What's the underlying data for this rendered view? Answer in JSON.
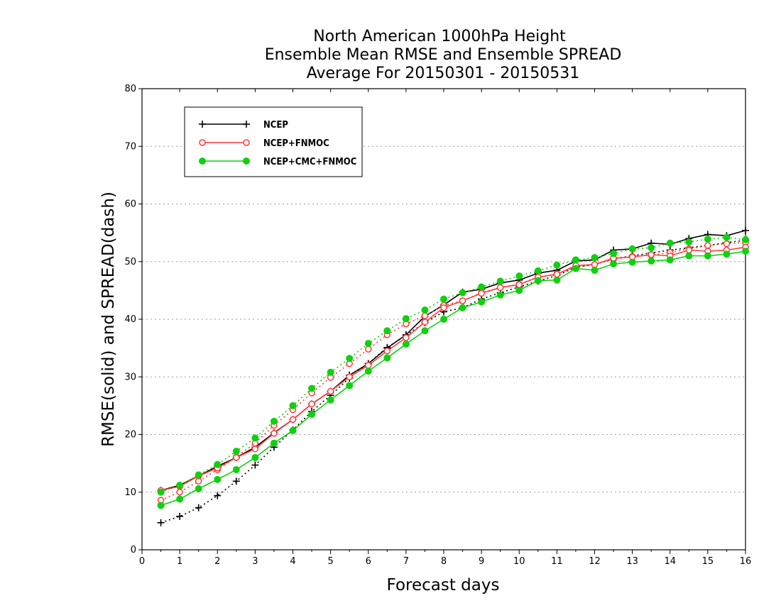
{
  "chart_data": {
    "type": "line",
    "title": [
      "North American 1000hPa Height",
      "Ensemble Mean RMSE and Ensemble SPREAD",
      "Average For 20150301 - 20150531"
    ],
    "xlabel": "Forecast days",
    "ylabel": "RMSE(solid) and SPREAD(dash)",
    "xlim": [
      0,
      16
    ],
    "ylim": [
      0,
      80
    ],
    "xticks": [
      "0",
      "1",
      "2",
      "3",
      "4",
      "5",
      "6",
      "7",
      "8",
      "9",
      "10",
      "11",
      "12",
      "13",
      "14",
      "15",
      "16"
    ],
    "yticks": [
      "0",
      "10",
      "20",
      "30",
      "40",
      "50",
      "60",
      "70",
      "80"
    ],
    "grid": "horizontal dotted",
    "legend_placement": "top-left",
    "x": [
      0.5,
      1,
      1.5,
      2,
      2.5,
      3,
      3.5,
      4,
      4.5,
      5,
      5.5,
      6,
      6.5,
      7,
      7.5,
      8,
      8.5,
      9,
      9.5,
      10,
      10.5,
      11,
      11.5,
      12,
      12.5,
      13,
      13.5,
      14,
      14.5,
      15,
      15.5,
      16
    ],
    "series": [
      {
        "name": "NCEP",
        "color": "#000000",
        "marker": "plus",
        "rmse": [
          10.3,
          11.2,
          12.8,
          14.5,
          16.0,
          17.8,
          20.3,
          22.6,
          25.3,
          27.5,
          30.3,
          32.3,
          35.0,
          37.3,
          40.5,
          42.5,
          44.7,
          45.2,
          46.3,
          46.8,
          48.0,
          48.5,
          50.1,
          50.3,
          52.0,
          52.2,
          53.2,
          53.0,
          54.0,
          54.7,
          54.5,
          55.4
        ],
        "spread": [
          4.7,
          5.8,
          7.3,
          9.4,
          11.9,
          14.7,
          17.8,
          20.8,
          24.0,
          26.8,
          29.8,
          32.3,
          35.1,
          37.2,
          39.4,
          41.3,
          42.0,
          43.5,
          44.6,
          45.6,
          46.6,
          47.6,
          49.0,
          49.5,
          50.5,
          51.0,
          51.5,
          52.0,
          52.4,
          52.8,
          53.3,
          53.7
        ]
      },
      {
        "name": "NCEP+FNMOC",
        "color": "#ff3b3b",
        "marker": "open-circle",
        "rmse": [
          10.3,
          11.0,
          12.8,
          14.2,
          16.0,
          17.5,
          20.2,
          22.6,
          25.3,
          27.5,
          30.0,
          32.0,
          34.5,
          36.8,
          39.5,
          42.0,
          43.2,
          44.5,
          45.5,
          46.0,
          47.3,
          47.8,
          49.3,
          49.5,
          50.6,
          50.8,
          51.2,
          51.0,
          52.0,
          51.8,
          52.0,
          52.5
        ],
        "spread": [
          8.6,
          10.0,
          11.9,
          13.9,
          16.1,
          18.5,
          21.6,
          24.3,
          27.2,
          29.9,
          32.3,
          34.8,
          37.3,
          39.2,
          40.6,
          42.4,
          43.2,
          44.6,
          45.5,
          46.1,
          47.3,
          47.9,
          49.0,
          49.5,
          50.4,
          50.9,
          51.1,
          51.6,
          52.2,
          52.8,
          53.1,
          53.3
        ]
      },
      {
        "name": "NCEP+CMC+FNMOC",
        "color": "#0fd10f",
        "marker": "filled-circle",
        "rmse": [
          7.7,
          8.8,
          10.6,
          12.2,
          13.9,
          16.0,
          18.5,
          20.7,
          23.5,
          26.0,
          28.5,
          31.0,
          33.3,
          35.7,
          38.0,
          40.0,
          42.0,
          43.0,
          44.2,
          45.0,
          46.7,
          46.8,
          48.8,
          48.5,
          49.6,
          49.9,
          50.1,
          50.3,
          51.0,
          51.0,
          51.3,
          51.8
        ],
        "spread": [
          10.0,
          11.2,
          13.0,
          14.8,
          17.1,
          19.4,
          22.3,
          25.0,
          28.0,
          30.8,
          33.2,
          35.8,
          38.0,
          40.1,
          41.6,
          43.5,
          44.6,
          45.6,
          46.6,
          47.5,
          48.4,
          49.4,
          50.3,
          50.7,
          51.4,
          52.2,
          52.4,
          53.2,
          53.4,
          53.9,
          54.2,
          53.8
        ]
      }
    ]
  }
}
